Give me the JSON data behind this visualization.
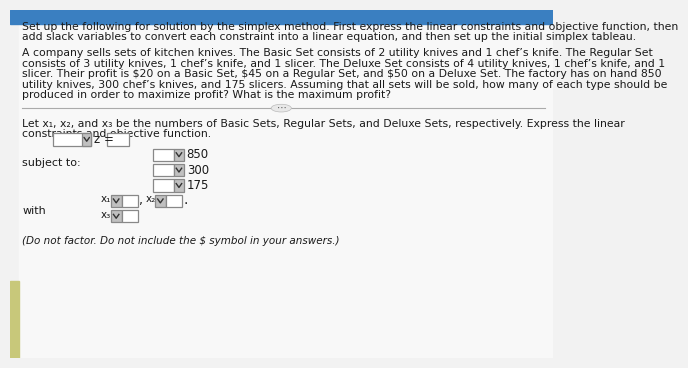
{
  "bg_top_color": "#3a7fc1",
  "bg_main_color": "#f2f2f2",
  "left_accent_color": "#c8c87a",
  "text_color": "#1a1a1a",
  "header_text_line1": "Set up the following for solution by the simplex method. First express the linear constraints and objective function, then",
  "header_text_line2": "add slack variables to convert each constraint into a linear equation, and then set up the initial simplex tableau.",
  "body_text_line1": "A company sells sets of kitchen knives. The Basic Set consists of 2 utility knives and 1 chef’s knife. The Regular Set",
  "body_text_line2": "consists of 3 utility knives, 1 chef’s knife, and 1 slicer. The Deluxe Set consists of 4 utility knives, 1 chef’s knife, and 1",
  "body_text_line3": "slicer. Their profit is $20 on a Basic Set, $45 on a Regular Set, and $50 on a Deluxe Set. The factory has on hand 850",
  "body_text_line4": "utility knives, 300 chef’s knives, and 175 slicers. Assuming that all sets will be sold, how many of each type should be",
  "body_text_line5": "produced in order to maximize profit? What is the maximum profit?",
  "divider_dots": "⋯",
  "lower_intro_line1": "Let x₁, x₂, and x₃ be the numbers of Basic Sets, Regular Sets, and Deluxe Sets, respectively. Express the linear",
  "lower_intro_line2": "constraints and objective function.",
  "subject_to_label": "subject to:",
  "with_label": "with",
  "z_eq_label": "z =",
  "values_850": "850",
  "values_300": "300",
  "values_175": "175",
  "x1_label": "x₁",
  "x2_label": "x₂",
  "x3_label": "x₃",
  "footer_note": "(Do not factor. Do not include the $ symbol in your answers.)",
  "box_color": "#ffffff",
  "box_border": "#888888",
  "dropdown_color": "#c0c0c0",
  "font_size_body": 8.0,
  "font_size_small": 7.5
}
